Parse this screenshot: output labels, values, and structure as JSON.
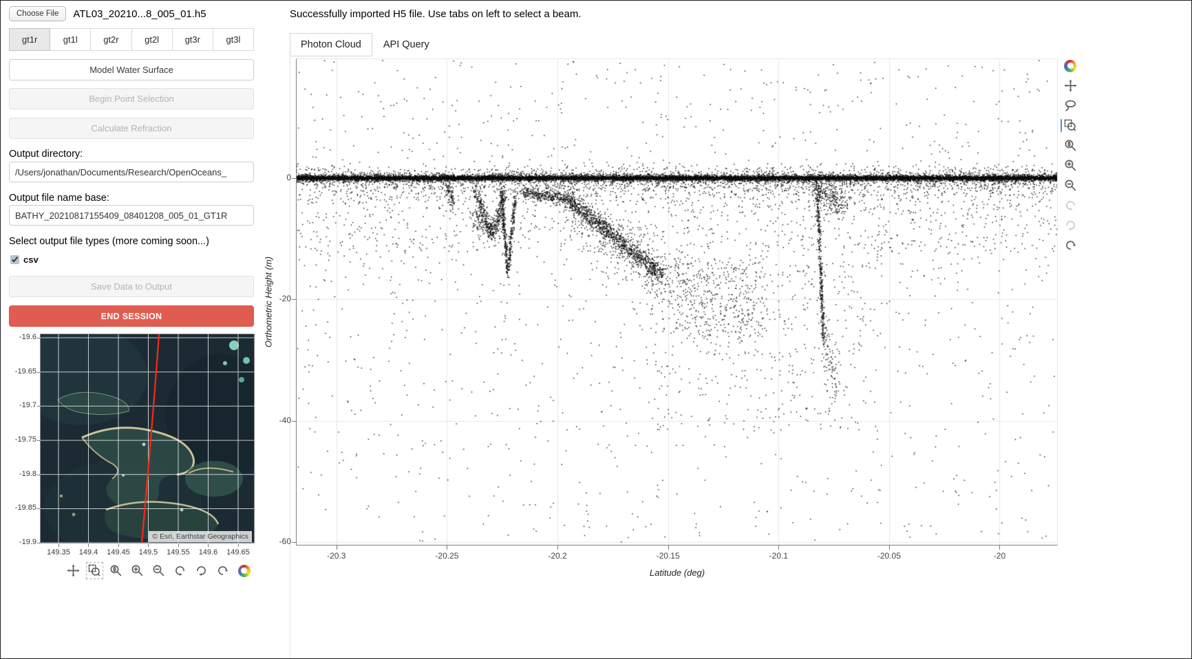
{
  "file_bar": {
    "choose_file_label": "Choose File",
    "filename": "ATL03_20210...8_005_01.h5"
  },
  "status_message": "Successfully imported H5 file. Use tabs on left to select a beam.",
  "beam_tabs": {
    "items": [
      {
        "label": "gt1r",
        "active": true
      },
      {
        "label": "gt1l",
        "active": false
      },
      {
        "label": "gt2r",
        "active": false
      },
      {
        "label": "gt2l",
        "active": false
      },
      {
        "label": "gt3r",
        "active": false
      },
      {
        "label": "gt3l",
        "active": false
      }
    ]
  },
  "controls": {
    "model_water_surface": "Model Water Surface",
    "begin_point_selection": "Begin Point Selection",
    "calculate_refraction": "Calculate Refraction",
    "output_directory_label": "Output directory:",
    "output_directory_value": "/Users/jonathan/Documents/Research/OpenOceans_",
    "output_base_label": "Output file name base:",
    "output_base_value": "BATHY_20210817155409_08401208_005_01_GT1R",
    "file_types_label": "Select output file types (more coming soon...)",
    "csv_label": "csv",
    "csv_checked": true,
    "save_button": "Save Data to Output",
    "end_session": "END SESSION",
    "end_session_color": "#e05c50"
  },
  "map": {
    "x_range": [
      149.3201,
      149.6765
    ],
    "y_range": [
      -19.8998,
      -19.595
    ],
    "x_ticks": [
      149.35,
      149.4,
      149.45,
      149.5,
      149.55,
      149.6,
      149.65
    ],
    "x_tick_labels": [
      "149.35",
      "149.4",
      "149.45",
      "149.5",
      "149.55",
      "149.6",
      "149.65"
    ],
    "y_ticks": [
      -19.6,
      -19.65,
      -19.7,
      -19.75,
      -19.8,
      -19.85,
      -19.9
    ],
    "y_tick_labels": [
      "-19.6",
      "-19.65",
      "-19.7",
      "-19.75",
      "-19.8",
      "-19.85",
      "-19.9"
    ],
    "attribution": "© Esri, Earthstar Geographics",
    "track_color": "#ff2718",
    "toolbar": [
      "pan",
      "box-zoom",
      "wheel-zoom",
      "zoom-in",
      "zoom-out",
      "undo",
      "redo",
      "reset",
      "bokeh-logo"
    ],
    "active_tool": "box-zoom"
  },
  "main_tabs": {
    "items": [
      {
        "label": "Photon Cloud",
        "name": "photon-cloud",
        "active": true
      },
      {
        "label": "API Query",
        "name": "api-query",
        "active": false
      }
    ]
  },
  "plot_toolbar": {
    "tools": [
      "bokeh-logo",
      "pan",
      "lasso-select",
      "box-zoom",
      "wheel-zoom",
      "zoom-in",
      "zoom-out",
      "undo",
      "redo",
      "reset"
    ],
    "active_tool": "box-zoom",
    "disabled_tools": [
      "undo",
      "redo"
    ]
  },
  "chart_data": {
    "type": "scatter",
    "title": "",
    "xlabel": "Latitude (deg)",
    "ylabel": "Orthometric Height (m)",
    "x_range": [
      -20.318,
      -19.974
    ],
    "y_range": [
      -60.4,
      19.6
    ],
    "x_ticks": [
      -20.3,
      -20.25,
      -20.2,
      -20.15,
      -20.1,
      -20.05,
      -20
    ],
    "x_tick_labels": [
      "-20.3",
      "-20.25",
      "-20.2",
      "-20.15",
      "-20.1",
      "-20.05",
      "-20"
    ],
    "y_ticks": [
      0,
      -20,
      -40,
      -60
    ],
    "y_tick_labels": [
      "0",
      "-20",
      "-40",
      "-60"
    ],
    "grid": true,
    "legend": "none",
    "marker": {
      "color": "#0b0b0b",
      "size": 1.4
    },
    "description": "ICESat-2 ATL03 photon cloud for beam gt1r: dense sea-surface return at 0 m across -20.32 to -19.97 deg latitude, reef/seabed returns descending to -16 m near -20.24..-20.22, a seabed slope from -3 m at -20.196 to -16 m at -20.153, sparse mid-depth scatter to -42 m, and a steep pinnacle return to -27 m near -20.08; background noise from +19 to -60 m.",
    "generator": {
      "seed": 11,
      "point_size": 1.4,
      "bands": [
        {
          "name": "sea-surface-core",
          "y": 0.0,
          "sy": 0.1,
          "count": 10000
        },
        {
          "name": "sea-surface",
          "y": 0.0,
          "sy": 0.26,
          "count": 9000
        },
        {
          "name": "sea-surface-halo",
          "y": -0.1,
          "sy": 0.95,
          "count": 2200
        },
        {
          "name": "near-surface-speckle",
          "y": -1.8,
          "sy": 1.5,
          "count": 700
        }
      ],
      "regions": [
        {
          "name": "above-surface-noise",
          "x0": -20.318,
          "x1": -19.974,
          "y0": 19.4,
          "y1": 1.0,
          "count": 360
        },
        {
          "name": "shallow-noise",
          "x0": -20.318,
          "x1": -19.974,
          "y0": -12.0,
          "y1": -1.0,
          "count": 1000
        },
        {
          "name": "deep-noise",
          "x0": -20.318,
          "x1": -19.974,
          "y0": -60.0,
          "y1": -12.0,
          "count": 820,
          "pow": 1.6
        },
        {
          "name": "mid-depth-wedge",
          "x0": -20.158,
          "x1": -20.06,
          "y0": -42.0,
          "y1": -14.0,
          "count": 380,
          "pow": 1.3
        },
        {
          "name": "slope-tail-scatter",
          "x0": -20.153,
          "x1": -20.105,
          "y0": -26.0,
          "y1": -13.0,
          "count": 220
        }
      ],
      "segments": [
        {
          "name": "reef-streak-1",
          "x0": -20.25,
          "y0": -1.2,
          "x1": -20.247,
          "y1": -4.5,
          "sx": 0.0006,
          "sy": 0.7,
          "count": 70
        },
        {
          "name": "reef-v-down",
          "x0": -20.238,
          "y0": -1.5,
          "x1": -20.2295,
          "y1": -9.2,
          "sx": 0.0006,
          "sy": 0.8,
          "count": 190
        },
        {
          "name": "reef-v-up",
          "x0": -20.2295,
          "y0": -9.2,
          "x1": -20.2235,
          "y1": -2.5,
          "sx": 0.0006,
          "sy": 0.8,
          "count": 150
        },
        {
          "name": "reef-blob",
          "x0": -20.2375,
          "y0": -6.8,
          "x1": -20.2265,
          "y1": -8.6,
          "sx": 0.0018,
          "sy": 1.1,
          "count": 170
        },
        {
          "name": "deep-spike-down",
          "x0": -20.2255,
          "y0": -2.0,
          "x1": -20.2225,
          "y1": -15.6,
          "sx": 0.0004,
          "sy": 0.8,
          "count": 260
        },
        {
          "name": "deep-spike-up",
          "x0": -20.2225,
          "y0": -15.6,
          "x1": -20.219,
          "y1": -3.0,
          "sx": 0.0004,
          "sy": 0.8,
          "count": 190
        },
        {
          "name": "seabed-shelf",
          "x0": -20.2165,
          "y0": -2.4,
          "x1": -20.196,
          "y1": -3.4,
          "sx": 0.0009,
          "sy": 0.5,
          "count": 330
        },
        {
          "name": "seabed-slope",
          "x0": -20.196,
          "y0": -3.4,
          "x1": -20.153,
          "y1": -15.8,
          "sx": 0.0009,
          "sy": 0.75,
          "count": 1000
        },
        {
          "name": "seabed-slope-halo",
          "x0": -20.196,
          "y0": -4.2,
          "x1": -20.153,
          "y1": -17.0,
          "sx": 0.0014,
          "sy": 2.6,
          "count": 420
        },
        {
          "name": "slope-extension",
          "x0": -20.153,
          "y0": -15.8,
          "x1": -20.112,
          "y1": -22.5,
          "sx": 0.002,
          "sy": 3.2,
          "count": 200
        },
        {
          "name": "pinnacle-streak",
          "x0": -20.0825,
          "y0": -2.0,
          "x1": -20.0795,
          "y1": -27.0,
          "sx": 0.0004,
          "sy": 1.0,
          "count": 380
        },
        {
          "name": "pinnacle-knot",
          "x0": -20.084,
          "y0": -1.5,
          "x1": -20.07,
          "y1": -4.5,
          "sx": 0.0018,
          "sy": 1.2,
          "count": 260
        },
        {
          "name": "pinnacle-deep",
          "x0": -20.08,
          "y0": -27.0,
          "x1": -20.074,
          "y1": -33.0,
          "sx": 0.0012,
          "sy": 2.4,
          "count": 80
        }
      ]
    }
  }
}
